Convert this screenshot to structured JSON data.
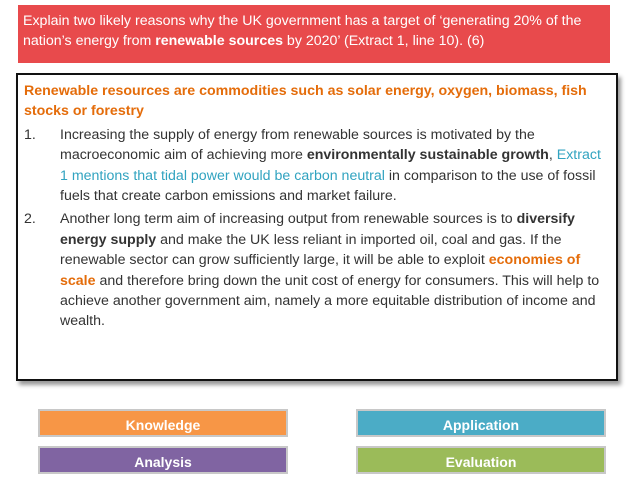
{
  "header": {
    "segments": [
      "Explain two likely reasons why the UK government has a target of ‘generating 20% of the nation’s energy from ",
      "renewable sources",
      " by 2020’ (Extract 1, line 10). (6)"
    ]
  },
  "answer": {
    "heading": "Renewable resources are commodities such as solar energy, oxygen, biomass, fish stocks or forestry",
    "items": [
      {
        "marker": "1.",
        "segments": [
          "Increasing the supply of energy from renewable sources is motivated by the macroeconomic aim of achieving more ",
          "environmentally sustainable growth",
          ", ",
          "Extract 1 mentions that tidal power would be carbon neutral",
          " in comparison to the use of fossil fuels that create carbon emissions and market failure."
        ]
      },
      {
        "marker": "2.",
        "segments": [
          "Another long term aim of increasing output from renewable sources is to ",
          "diversify energy supply",
          " and make the UK less reliant in imported oil, coal and gas. If the renewable sector can grow sufficiently large, it will be able to exploit ",
          "economies of scale",
          " and therefore bring down the unit cost of energy for consumers. This will help to achieve another government aim, namely a more equitable distribution of income and wealth."
        ]
      }
    ]
  },
  "legend": [
    "Knowledge",
    "Application",
    "Analysis",
    "Evaluation"
  ]
}
